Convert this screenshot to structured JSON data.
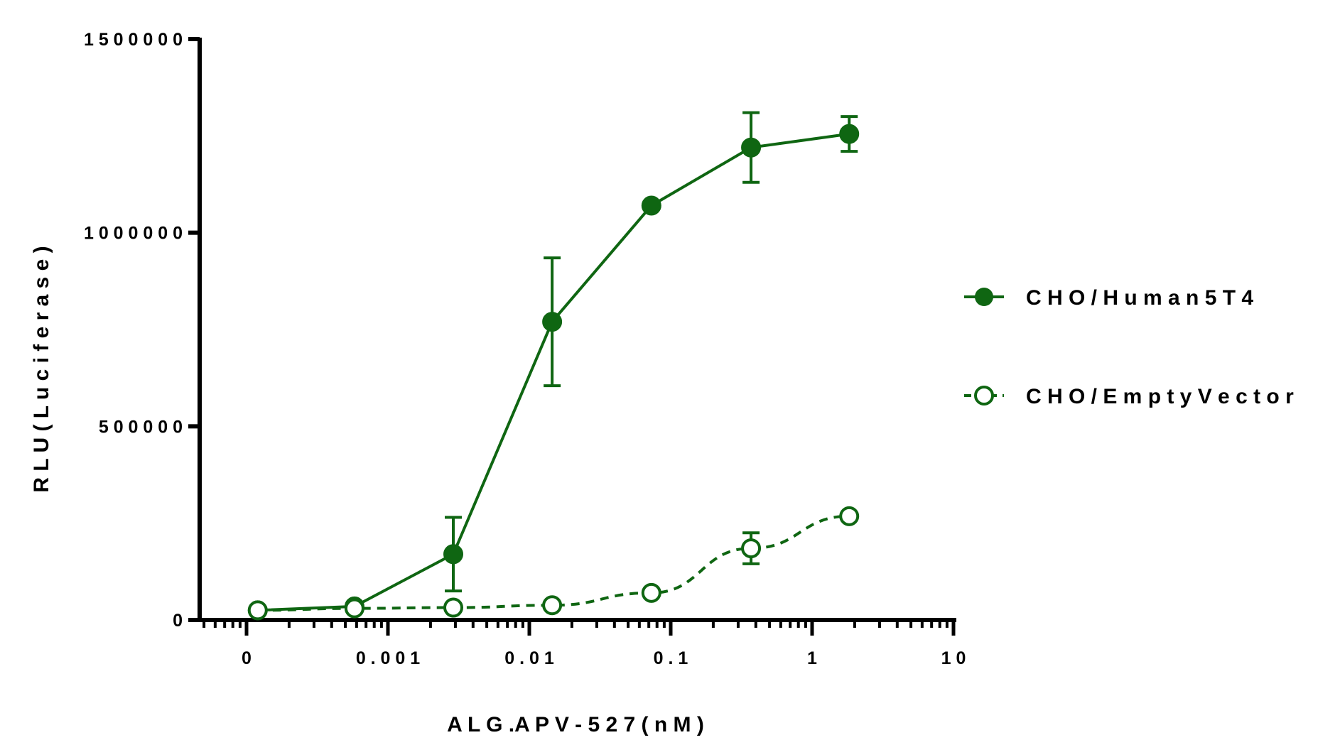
{
  "chart_data": {
    "type": "line",
    "xlabel": "A L G .A P V - 5 2 7  ( n M )",
    "ylabel": "R L U  ( L u c i f e r a s e )",
    "x_scale": "log",
    "xlim": [
      0.0001,
      10
    ],
    "ylim": [
      0,
      1500000
    ],
    "x_ticks": [
      {
        "value": 0.0001,
        "label": "0"
      },
      {
        "value": 0.001,
        "label": "0 . 0 0 1"
      },
      {
        "value": 0.01,
        "label": "0 . 0 1"
      },
      {
        "value": 0.1,
        "label": "0 . 1"
      },
      {
        "value": 1,
        "label": "1"
      },
      {
        "value": 10,
        "label": "1 0"
      }
    ],
    "y_ticks": [
      {
        "value": 0,
        "label": "0"
      },
      {
        "value": 500000,
        "label": "5 0 0 0 0 0"
      },
      {
        "value": 1000000,
        "label": "1 0 0 0 0 0 0"
      },
      {
        "value": 1500000,
        "label": "1 5 0 0 0 0 0"
      }
    ],
    "series": [
      {
        "name": "C H O / H u m a n  5 T 4",
        "color": "#0f6612",
        "marker": "filled-circle",
        "line": "solid",
        "x": [
          0.00012,
          0.00058,
          0.0029,
          0.0145,
          0.073,
          0.37,
          1.83
        ],
        "y": [
          25000,
          35000,
          170000,
          770000,
          1070000,
          1220000,
          1255000
        ],
        "err": [
          0,
          0,
          95000,
          165000,
          0,
          90000,
          45000
        ]
      },
      {
        "name": "C H O / E m p t y  V e c t o r",
        "color": "#0f6612",
        "marker": "open-circle",
        "line": "dashed",
        "x": [
          0.00012,
          0.00058,
          0.0029,
          0.0145,
          0.073,
          0.37,
          1.83
        ],
        "y": [
          25000,
          30000,
          32000,
          38000,
          70000,
          185000,
          268000
        ],
        "err": [
          0,
          0,
          0,
          0,
          0,
          40000,
          0
        ]
      }
    ],
    "legend_position": "right"
  }
}
